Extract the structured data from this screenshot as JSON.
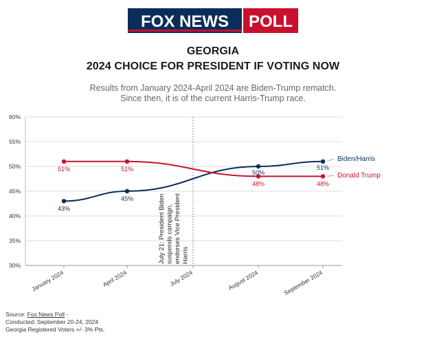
{
  "logo": {
    "left": "FOX NEWS",
    "right": "POLL"
  },
  "colors": {
    "blue": "#0b2d5b",
    "red": "#c8102e",
    "navy_bg": "#ffffff",
    "grid": "#dcdcdc",
    "note_line": "#888888"
  },
  "chart_data": {
    "type": "line",
    "title": "GEORGIA",
    "subtitle": "2024 CHOICE FOR PRESIDENT IF VOTING NOW",
    "description": [
      "Results from January 2024-April 2024 are Biden-Trump rematch.",
      "Since then, it is of the current Harris-Trump race."
    ],
    "xlabel": "",
    "ylabel": "",
    "categories": [
      "January 2024",
      "April 2024",
      "July 2024",
      "August 2024",
      "September 2024"
    ],
    "ylim": [
      30,
      60
    ],
    "yticks": [
      30,
      35,
      40,
      45,
      50,
      55,
      60
    ],
    "ytick_labels": [
      "30%",
      "35%",
      "40%",
      "45%",
      "50%",
      "55%",
      "60%"
    ],
    "grid": true,
    "series": [
      {
        "name": "Biden/Harris",
        "color": "#0b2d5b",
        "points": [
          [
            "January 2024",
            43
          ],
          [
            "April 2024",
            45
          ],
          [
            "August 2024",
            50
          ],
          [
            "September 2024",
            51
          ]
        ],
        "labels": [
          "43%",
          "45%",
          "50%",
          "51%"
        ]
      },
      {
        "name": "Donald Trump",
        "color": "#c8102e",
        "points": [
          [
            "January 2024",
            51
          ],
          [
            "April 2024",
            51
          ],
          [
            "August 2024",
            48
          ],
          [
            "September 2024",
            48
          ]
        ],
        "labels": [
          "51%",
          "51%",
          "48%",
          "48%"
        ]
      }
    ],
    "annotation": {
      "category": "July 2024",
      "lines": [
        "July 21: President Biden",
        "suspends campaign,",
        "endorses Vice President",
        "Harris"
      ]
    }
  },
  "footer": {
    "source_prefix": "Source: ",
    "source_link": "Fox News Poll",
    "source_suffix": " -",
    "conducted": "Conducted: September 20-24, 2024",
    "voters": "Georgia Registered Voters +/- 3% Pts."
  }
}
